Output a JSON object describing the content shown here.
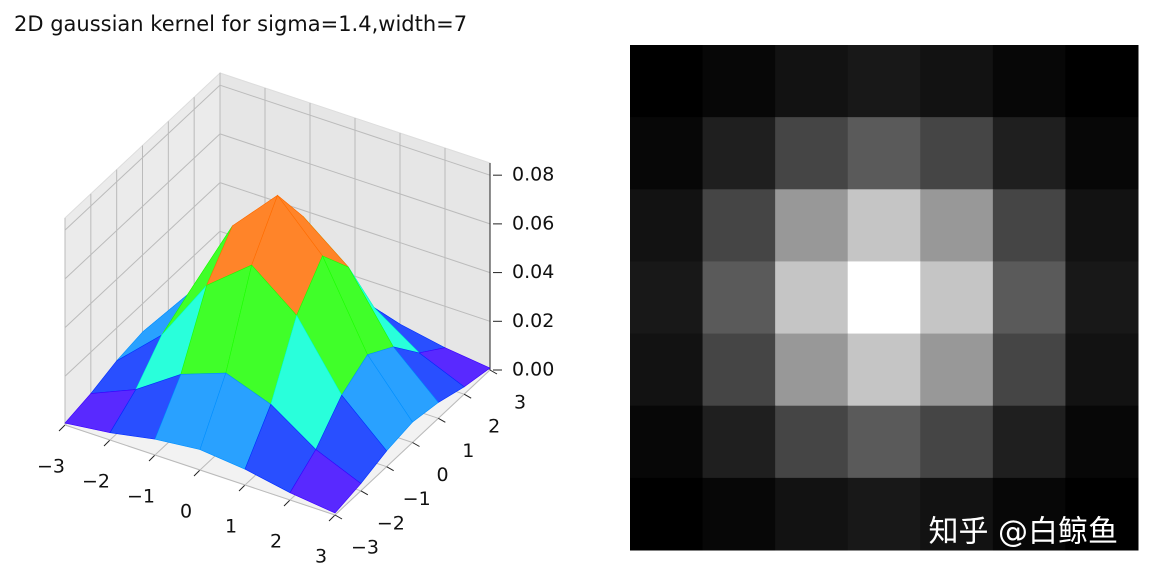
{
  "chart_data": [
    {
      "type": "surface3d",
      "title": "2D gaussian kernel for sigma=1.4,width=7",
      "colormap": "rainbow",
      "x": [
        -3,
        -2,
        -1,
        0,
        1,
        2,
        3
      ],
      "y": [
        -3,
        -2,
        -1,
        0,
        1,
        2,
        3
      ],
      "z": [
        [
          0.0008,
          0.003,
          0.0065,
          0.0084,
          0.0065,
          0.003,
          0.0008
        ],
        [
          0.003,
          0.0108,
          0.0232,
          0.0299,
          0.0232,
          0.0108,
          0.003
        ],
        [
          0.0065,
          0.0232,
          0.0498,
          0.0643,
          0.0498,
          0.0232,
          0.0065
        ],
        [
          0.0084,
          0.0299,
          0.0643,
          0.083,
          0.0643,
          0.0299,
          0.0084
        ],
        [
          0.0065,
          0.0232,
          0.0498,
          0.0643,
          0.0498,
          0.0232,
          0.0065
        ],
        [
          0.003,
          0.0108,
          0.0232,
          0.0299,
          0.0232,
          0.0108,
          0.003
        ],
        [
          0.0008,
          0.003,
          0.0065,
          0.0084,
          0.0065,
          0.003,
          0.0008
        ]
      ],
      "xlim": [
        -3,
        3
      ],
      "ylim": [
        -3,
        3
      ],
      "zlim": [
        0,
        0.085
      ],
      "xticks": [
        {
          "value": -3,
          "label": "−3"
        },
        {
          "value": -2,
          "label": "−2"
        },
        {
          "value": -1,
          "label": "−1"
        },
        0,
        1,
        2,
        3
      ],
      "yticks": [
        {
          "value": -3,
          "label": "−3"
        },
        {
          "value": -2,
          "label": "−2"
        },
        {
          "value": -1,
          "label": "−1"
        },
        0,
        1,
        2,
        3
      ],
      "zticks": [
        {
          "value": 0,
          "label": "0.00"
        },
        {
          "value": 0.02,
          "label": "0.02"
        },
        {
          "value": 0.04,
          "label": "0.04"
        },
        {
          "value": 0.06,
          "label": "0.06"
        },
        0.08
      ],
      "grid": true
    },
    {
      "type": "heatmap",
      "colormap": "gray",
      "z": [
        [
          0.0008,
          0.003,
          0.0065,
          0.0084,
          0.0065,
          0.003,
          0.0008
        ],
        [
          0.003,
          0.0108,
          0.0232,
          0.0299,
          0.0232,
          0.0108,
          0.003
        ],
        [
          0.0065,
          0.0232,
          0.0498,
          0.0643,
          0.0498,
          0.0232,
          0.0065
        ],
        [
          0.0084,
          0.0299,
          0.0643,
          0.083,
          0.0643,
          0.0299,
          0.0084
        ],
        [
          0.0065,
          0.0232,
          0.0498,
          0.0643,
          0.0498,
          0.0232,
          0.0065
        ],
        [
          0.003,
          0.0108,
          0.0232,
          0.0299,
          0.0232,
          0.0108,
          0.003
        ],
        [
          0.0008,
          0.003,
          0.0065,
          0.0084,
          0.0065,
          0.003,
          0.0008
        ]
      ]
    }
  ],
  "watermark": "知乎 @白鲸鱼"
}
